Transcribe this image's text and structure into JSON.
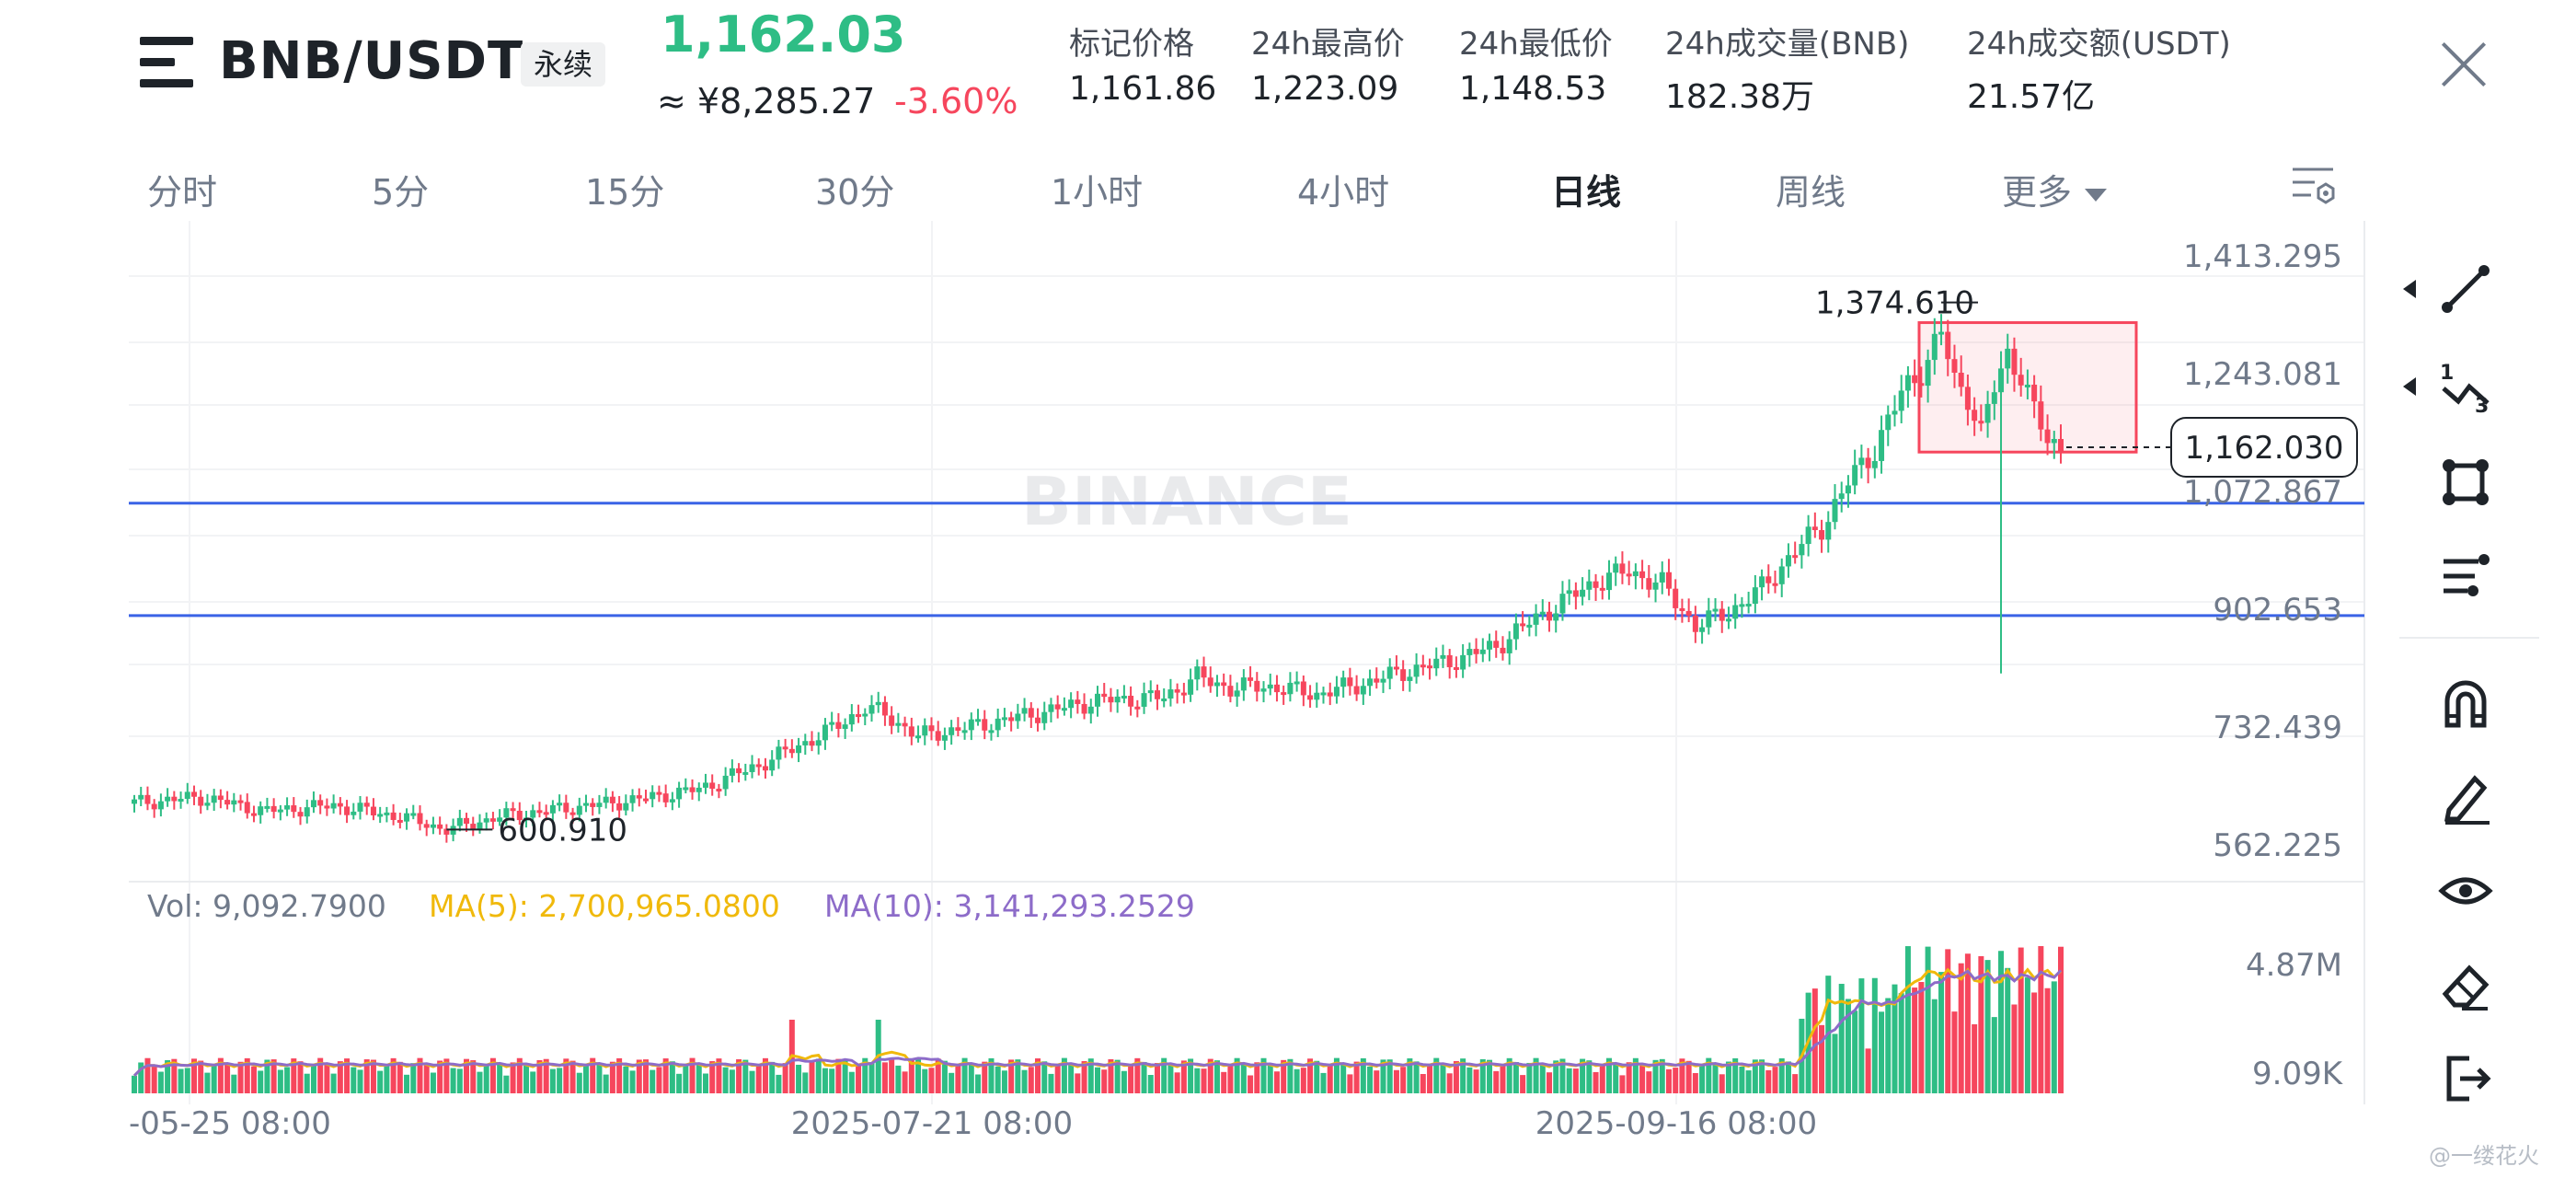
{
  "header": {
    "symbol": "BNB/USDT",
    "contract_badge": "永续",
    "last_price": "1,162.03",
    "cny_price": "≈ ¥8,285.27",
    "change_pct": "-3.60%",
    "stats": [
      {
        "label": "标记价格",
        "value": "1,161.86"
      },
      {
        "label": "24h最高价",
        "value": "1,223.09"
      },
      {
        "label": "24h最低价",
        "value": "1,148.53"
      },
      {
        "label": "24h成交量(BNB)",
        "value": "182.38万"
      },
      {
        "label": "24h成交额(USDT)",
        "value": "21.57亿"
      }
    ]
  },
  "tabs": [
    "分时",
    "5分",
    "15分",
    "30分",
    "1小时",
    "4小时",
    "日线",
    "周线",
    "更多"
  ],
  "active_tab": "日线",
  "chart": {
    "watermark": "BINANCE",
    "price_ticks": [
      "1,413.295",
      "1,243.081",
      "1,072.867",
      "902.653",
      "732.439",
      "562.225"
    ],
    "current_price_label": "1,162.030",
    "high_annotation": "1,374.610",
    "low_annotation": "600.910",
    "volume_ticks": [
      "4.87M",
      "9.09K"
    ],
    "date_ticks": [
      "-05-25 08:00",
      "2025-07-21 08:00",
      "2025-09-16 08:00"
    ],
    "indicators": {
      "vol": "Vol: 9,092.7900",
      "ma5": "MA(5): 2,700,965.0800",
      "ma10": "MA(10): 3,141,293.2529"
    },
    "horizontal_lines": [
      1080,
      915
    ],
    "colors": {
      "up": "#2ebd85",
      "down": "#f6465d",
      "hline": "#3a63e6",
      "ma5": "#f0b90b",
      "ma10": "#8d6cc9",
      "box": "#f6465d"
    }
  },
  "toolbar_icons": [
    "trendline-icon",
    "fib-icon",
    "shape-icon",
    "indicator-icon",
    "magnet-icon",
    "pencil-icon",
    "eye-icon",
    "eraser-icon",
    "exit-icon"
  ],
  "watermark_text": "@一缕花火"
}
